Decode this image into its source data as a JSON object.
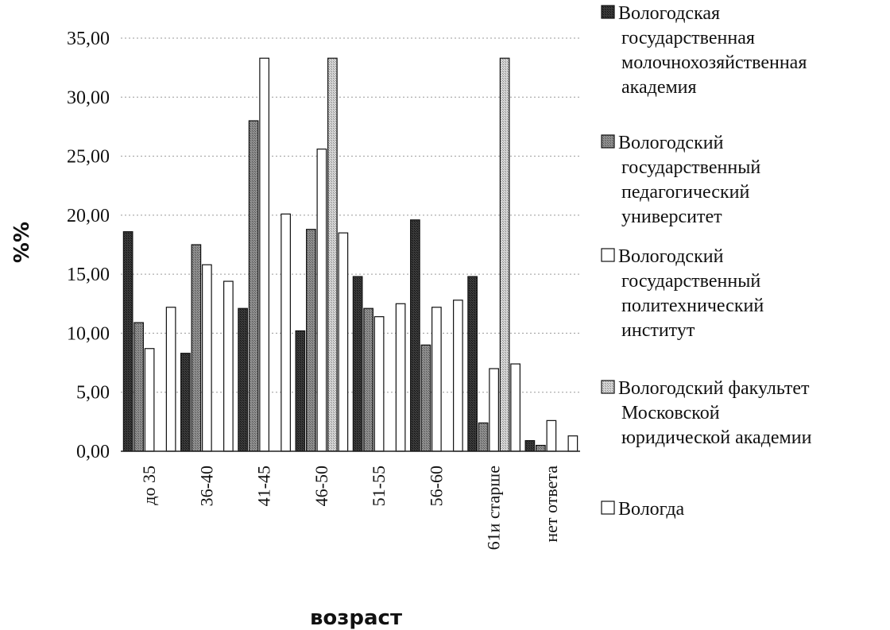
{
  "chart_data": {
    "type": "bar",
    "categories": [
      "до 35",
      "36-40",
      "41-45",
      "46-50",
      "51-55",
      "56-60",
      "61и старше",
      "нет ответа"
    ],
    "ytick_labels": [
      "0,00",
      "5,00",
      "10,00",
      "15,00",
      "20,00",
      "25,00",
      "30,00",
      "35,00"
    ],
    "ylim": [
      0,
      35
    ],
    "ylabel": "%%",
    "xlabel": "возраст",
    "legend_position": "right",
    "series": [
      {
        "name": "Вологодская государственная молочнохозяйственная академия",
        "legend_lines": [
          "Вологодская",
          "государственная",
          "молочнохозяйственная",
          "академия"
        ],
        "color": "#3a3a3a",
        "values": [
          18.6,
          8.3,
          12.1,
          10.2,
          14.8,
          19.6,
          14.8,
          0.9
        ]
      },
      {
        "name": "Вологодский государственный педагогический университет",
        "legend_lines": [
          "Вологодский",
          "государственный",
          "педагогический",
          "университет"
        ],
        "color": "#8f8f8f",
        "values": [
          10.9,
          17.5,
          28.0,
          18.8,
          12.1,
          9.0,
          2.4,
          0.5
        ]
      },
      {
        "name": "Вологодский государственный политехнический институт",
        "legend_lines": [
          "Вологодский",
          "государственный",
          "политехнический",
          "институт"
        ],
        "color": "#ffffff",
        "values": [
          8.7,
          15.8,
          33.3,
          25.6,
          11.4,
          12.2,
          7.0,
          2.6
        ]
      },
      {
        "name": "Вологодский факультет Московской юридической академии",
        "legend_lines": [
          "Вологодский факультет",
          "Московской",
          "юридической академии"
        ],
        "color": "#d6d6d6",
        "values": [
          0,
          0,
          0,
          33.3,
          0,
          0,
          33.3,
          0
        ]
      },
      {
        "name": "Вологда",
        "legend_lines": [
          "Вологда"
        ],
        "color": "#ffffff",
        "values": [
          12.2,
          14.4,
          20.1,
          18.5,
          12.5,
          12.8,
          7.4,
          1.3
        ]
      }
    ]
  }
}
